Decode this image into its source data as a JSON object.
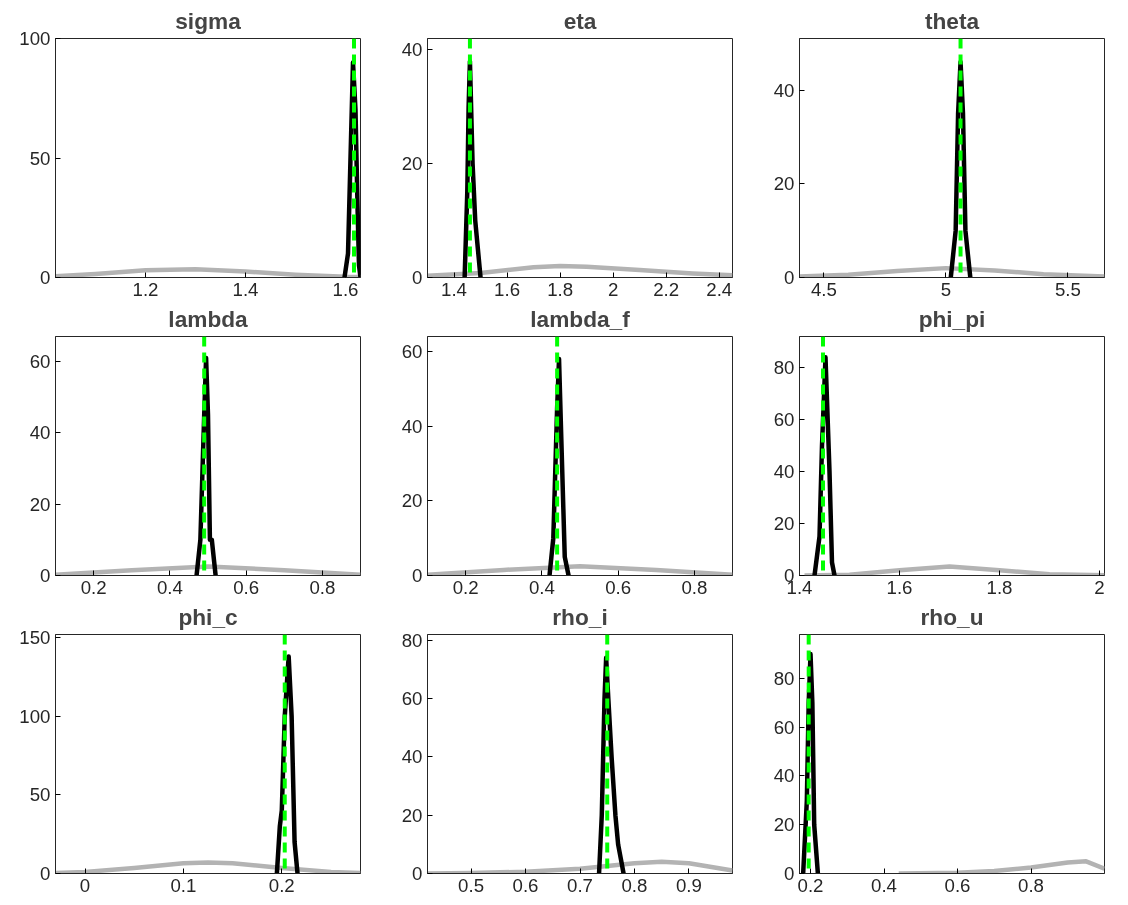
{
  "chart_data": [
    {
      "type": "line",
      "title": "sigma",
      "xlim": [
        1.02,
        1.63
      ],
      "ylim": [
        0,
        100
      ],
      "xticks": [
        1.2,
        1.4,
        1.6
      ],
      "yticks": [
        0,
        50,
        100
      ],
      "grid": false,
      "series": [
        {
          "color": "#b3b3b3",
          "x": [
            1.02,
            1.1,
            1.2,
            1.3,
            1.4,
            1.5,
            1.6,
            1.63
          ],
          "values": [
            0.5,
            1.5,
            3,
            3.5,
            2.5,
            1.2,
            0.3,
            0.2
          ]
        },
        {
          "color": "#000000",
          "x": [
            1.598,
            1.605,
            1.61,
            1.615,
            1.62,
            1.624,
            1.627,
            1.63
          ],
          "values": [
            0,
            10,
            50,
            90,
            70,
            30,
            5,
            0
          ]
        }
      ],
      "ref_lines": [
        {
          "axis": "x",
          "value": 1.617,
          "color": "#00ff00",
          "line_style": "dashed"
        }
      ]
    },
    {
      "type": "line",
      "title": "eta",
      "xlim": [
        1.3,
        2.45
      ],
      "ylim": [
        0,
        42
      ],
      "xticks": [
        1.4,
        1.6,
        1.8,
        2,
        2.2,
        2.4
      ],
      "yticks": [
        0,
        20,
        40
      ],
      "grid": false,
      "series": [
        {
          "color": "#b3b3b3",
          "x": [
            1.3,
            1.5,
            1.7,
            1.8,
            1.9,
            2.1,
            2.3,
            2.45
          ],
          "values": [
            0.3,
            0.8,
            1.8,
            2,
            1.9,
            1.3,
            0.7,
            0.4
          ]
        },
        {
          "color": "#000000",
          "x": [
            1.44,
            1.45,
            1.455,
            1.46,
            1.47,
            1.48,
            1.49,
            1.5
          ],
          "values": [
            0,
            15,
            30,
            38,
            20,
            10,
            5,
            0
          ]
        }
      ],
      "ref_lines": [
        {
          "axis": "x",
          "value": 1.46,
          "color": "#00ff00",
          "line_style": "dashed"
        }
      ]
    },
    {
      "type": "line",
      "title": "theta",
      "xlim": [
        4.4,
        5.65
      ],
      "ylim": [
        0,
        51
      ],
      "xticks": [
        4.5,
        5,
        5.5
      ],
      "yticks": [
        0,
        20,
        40
      ],
      "grid": false,
      "series": [
        {
          "color": "#b3b3b3",
          "x": [
            4.4,
            4.6,
            4.8,
            5.0,
            5.2,
            5.4,
            5.65
          ],
          "values": [
            0.2,
            0.6,
            1.4,
            2,
            1.5,
            0.7,
            0.2
          ]
        },
        {
          "color": "#000000",
          "x": [
            5.02,
            5.04,
            5.05,
            5.06,
            5.07,
            5.08,
            5.1
          ],
          "values": [
            0,
            10,
            35,
            46,
            35,
            10,
            0
          ]
        }
      ],
      "ref_lines": [
        {
          "axis": "x",
          "value": 5.06,
          "color": "#00ff00",
          "line_style": "dashed"
        }
      ]
    },
    {
      "type": "line",
      "title": "lambda",
      "xlim": [
        0.1,
        0.9
      ],
      "ylim": [
        0,
        67
      ],
      "xticks": [
        0.2,
        0.4,
        0.6,
        0.8
      ],
      "yticks": [
        0,
        20,
        40,
        60
      ],
      "grid": false,
      "series": [
        {
          "color": "#b3b3b3",
          "x": [
            0.1,
            0.3,
            0.5,
            0.7,
            0.9
          ],
          "values": [
            0.2,
            1.5,
            2.5,
            1.5,
            0.2
          ]
        },
        {
          "color": "#000000",
          "x": [
            0.47,
            0.48,
            0.49,
            0.495,
            0.5,
            0.505,
            0.51,
            0.515,
            0.52
          ],
          "values": [
            0,
            10,
            45,
            61,
            45,
            10,
            10,
            5,
            0
          ]
        }
      ],
      "ref_lines": [
        {
          "axis": "x",
          "value": 0.49,
          "color": "#00ff00",
          "line_style": "dashed"
        }
      ]
    },
    {
      "type": "line",
      "title": "lambda_f",
      "xlim": [
        0.1,
        0.9
      ],
      "ylim": [
        0,
        64
      ],
      "xticks": [
        0.2,
        0.4,
        0.6,
        0.8
      ],
      "yticks": [
        0,
        20,
        40,
        60
      ],
      "grid": false,
      "series": [
        {
          "color": "#b3b3b3",
          "x": [
            0.1,
            0.3,
            0.5,
            0.7,
            0.9
          ],
          "values": [
            0.2,
            1.5,
            2.5,
            1.5,
            0.2
          ]
        },
        {
          "color": "#000000",
          "x": [
            0.42,
            0.43,
            0.44,
            0.445,
            0.45,
            0.46,
            0.47
          ],
          "values": [
            0,
            10,
            45,
            58,
            40,
            5,
            0
          ]
        }
      ],
      "ref_lines": [
        {
          "axis": "x",
          "value": 0.44,
          "color": "#00ff00",
          "line_style": "dashed"
        }
      ]
    },
    {
      "type": "line",
      "title": "phi_pi",
      "xlim": [
        1.4,
        2.01
      ],
      "ylim": [
        0,
        92
      ],
      "xticks": [
        1.4,
        1.6,
        1.8,
        2
      ],
      "yticks": [
        0,
        20,
        40,
        60,
        80
      ],
      "grid": false,
      "series": [
        {
          "color": "#b3b3b3",
          "x": [
            1.41,
            1.5,
            1.6,
            1.7,
            1.8,
            1.9,
            2.01
          ],
          "values": [
            0,
            0.3,
            2,
            3.5,
            2,
            0.5,
            0.1
          ]
        },
        {
          "color": "#000000",
          "x": [
            1.43,
            1.44,
            1.445,
            1.452,
            1.46,
            1.465,
            1.47
          ],
          "values": [
            0,
            15,
            50,
            84,
            40,
            5,
            0
          ]
        }
      ],
      "ref_lines": [
        {
          "axis": "x",
          "value": 1.447,
          "color": "#00ff00",
          "line_style": "dashed"
        }
      ]
    },
    {
      "type": "line",
      "title": "phi_c",
      "xlim": [
        -0.03,
        0.28
      ],
      "ylim": [
        0,
        152
      ],
      "xticks": [
        0,
        0.1,
        0.2
      ],
      "yticks": [
        0,
        50,
        100,
        150
      ],
      "grid": false,
      "series": [
        {
          "color": "#b3b3b3",
          "x": [
            -0.03,
            0,
            0.05,
            0.1,
            0.125,
            0.15,
            0.2,
            0.25,
            0.28
          ],
          "values": [
            0.3,
            1,
            3.5,
            6.5,
            7,
            6.5,
            3.5,
            1,
            0.3
          ]
        },
        {
          "color": "#000000",
          "x": [
            0.195,
            0.198,
            0.2,
            0.203,
            0.207,
            0.21,
            0.213,
            0.216
          ],
          "values": [
            0,
            30,
            40,
            100,
            138,
            100,
            20,
            0
          ]
        }
      ],
      "ref_lines": [
        {
          "axis": "x",
          "value": 0.203,
          "color": "#00ff00",
          "line_style": "dashed"
        }
      ]
    },
    {
      "type": "line",
      "title": "rho_i",
      "xlim": [
        0.42,
        0.98
      ],
      "ylim": [
        0,
        82
      ],
      "xticks": [
        0.5,
        0.6,
        0.7,
        0.8,
        0.9
      ],
      "yticks": [
        0,
        20,
        40,
        60,
        80
      ],
      "grid": false,
      "series": [
        {
          "color": "#b3b3b3",
          "x": [
            0.42,
            0.5,
            0.6,
            0.7,
            0.8,
            0.85,
            0.9,
            0.98
          ],
          "values": [
            0,
            0.2,
            0.6,
            1.6,
            3.5,
            4,
            3.5,
            1
          ]
        },
        {
          "color": "#000000",
          "x": [
            0.735,
            0.74,
            0.745,
            0.748,
            0.752,
            0.758,
            0.765,
            0.77,
            0.775,
            0.78
          ],
          "values": [
            0,
            20,
            60,
            74,
            60,
            40,
            20,
            10,
            5,
            0
          ]
        }
      ],
      "ref_lines": [
        {
          "axis": "x",
          "value": 0.75,
          "color": "#00ff00",
          "line_style": "dashed"
        }
      ]
    },
    {
      "type": "line",
      "title": "rho_u",
      "xlim": [
        0.17,
        1.0
      ],
      "ylim": [
        0,
        98
      ],
      "xticks": [
        0.2,
        0.4,
        0.6,
        0.8
      ],
      "yticks": [
        0,
        20,
        40,
        60,
        80
      ],
      "grid": false,
      "series": [
        {
          "color": "#b3b3b3",
          "x": [
            0.44,
            0.6,
            0.7,
            0.8,
            0.9,
            0.95,
            1.0
          ],
          "values": [
            0,
            0.3,
            1,
            2.5,
            4.5,
            5,
            2
          ]
        },
        {
          "color": "#000000",
          "x": [
            0.18,
            0.19,
            0.195,
            0.2,
            0.205,
            0.21,
            0.22
          ],
          "values": [
            0,
            30,
            70,
            90,
            70,
            20,
            0
          ]
        }
      ],
      "ref_lines": [
        {
          "axis": "x",
          "value": 0.195,
          "color": "#00ff00",
          "line_style": "dashed"
        }
      ]
    }
  ]
}
